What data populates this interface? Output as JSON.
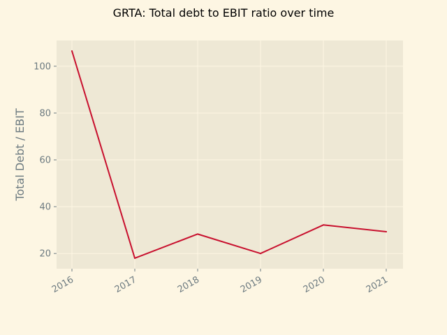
{
  "chart_data": {
    "type": "line",
    "title": "GRTA: Total debt to EBIT ratio over time",
    "xlabel": "",
    "ylabel": "Total Debt / EBIT",
    "x": [
      "2016",
      "2017",
      "2018",
      "2019",
      "2020",
      "2021"
    ],
    "series": [
      {
        "values": [
          106.5,
          18.0,
          28.3,
          20.0,
          32.2,
          29.3
        ],
        "color": "#c8102e"
      }
    ],
    "yticks": [
      20,
      40,
      60,
      80,
      100
    ],
    "ylim": [
      13.5,
      111
    ],
    "grid": true,
    "background": "#fdf6e3",
    "plot_background": "#eee8d5"
  }
}
